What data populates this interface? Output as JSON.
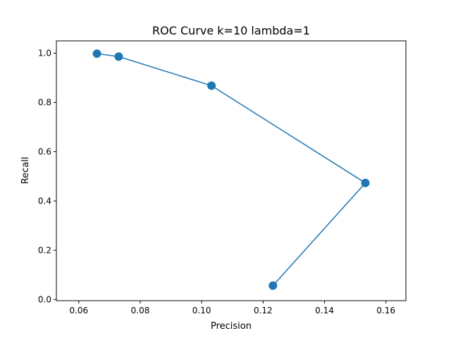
{
  "chart_data": {
    "type": "line",
    "title": "ROC Curve k=10 lambda=1",
    "xlabel": "Precision",
    "ylabel": "Recall",
    "xlim": [
      0.0527,
      0.1665
    ],
    "ylim": [
      -0.005,
      1.05
    ],
    "xticks": [
      0.06,
      0.08,
      0.1,
      0.12,
      0.14,
      0.16
    ],
    "xtick_labels": [
      "0.06",
      "0.08",
      "0.10",
      "0.12",
      "0.14",
      "0.16"
    ],
    "yticks": [
      0.0,
      0.2,
      0.4,
      0.6,
      0.8,
      1.0
    ],
    "ytick_labels": [
      "0.0",
      "0.2",
      "0.4",
      "0.6",
      "0.8",
      "1.0"
    ],
    "grid": false,
    "legend": "none",
    "series": [
      {
        "color": "#1f77b4",
        "marker": "circle",
        "x": [
          0.0659,
          0.073,
          0.1032,
          0.1533,
          0.1232
        ],
        "y": [
          0.998,
          0.986,
          0.868,
          0.473,
          0.056
        ]
      }
    ]
  }
}
